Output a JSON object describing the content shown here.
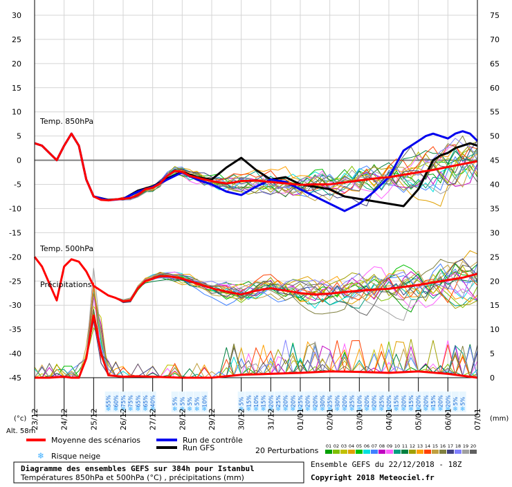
{
  "chart_data": {
    "type": "line",
    "title": "Diagramme des ensembles GEFS sur 384h pour Istanbul",
    "subtitle": "Températures 850hPa et 500hPa (°C) , précipitations (mm)",
    "ensemble_info": "Ensemble GEFS du 22/12/2018 - 18Z",
    "copyright": "Copyright 2018 Meteociel.fr",
    "left_unit": "(°c)",
    "right_unit": "(mm)",
    "altitude": "Alt. 58m",
    "section_labels": {
      "t850": "Temp. 850hPa",
      "t500": "Temp. 500hPa",
      "precip": "Précipitations"
    },
    "left_axis": {
      "ylim": [
        -45,
        30
      ],
      "ticks": [
        "30",
        "25",
        "20",
        "15",
        "10",
        "5",
        "0",
        "-5",
        "-10",
        "-15",
        "-20",
        "-25",
        "-30",
        "-35",
        "-40",
        "-45"
      ]
    },
    "right_axis": {
      "ticks": [
        "75",
        "70",
        "65",
        "60",
        "55",
        "50",
        "45",
        "40",
        "35",
        "30",
        "25",
        "20",
        "15",
        "10",
        "5",
        "0"
      ]
    },
    "x": {
      "start": "23/12",
      "end": "07/01",
      "dates": [
        "23/12",
        "24/12",
        "25/12",
        "26/12",
        "27/12",
        "28/12",
        "29/12",
        "30/12",
        "31/12",
        "01/01",
        "02/01",
        "03/01",
        "04/01",
        "05/01",
        "06/01",
        "07/01"
      ]
    },
    "legend": {
      "mean": "Moyenne des scénarios",
      "control": "Run de contrôle",
      "gfs": "Run GFS",
      "snow": "Risque neige",
      "perturbations": "20 Perturbations",
      "perturbation_ids": [
        "01",
        "02",
        "03",
        "04",
        "05",
        "06",
        "07",
        "08",
        "09",
        "10",
        "11",
        "12",
        "13",
        "14",
        "15",
        "16",
        "17",
        "18",
        "19",
        "20"
      ]
    },
    "snow_risk": {
      "blocks": [
        {
          "start": "25/12 12h",
          "labels": [
            "55%",
            "60%",
            "75%",
            "75%",
            "65%",
            "65%",
            "40%"
          ]
        },
        {
          "start": "27/12 18h",
          "labels": [
            "5%",
            "5%",
            "5%",
            "5%",
            "10%"
          ]
        },
        {
          "start": "30/12",
          "labels": [
            "5%",
            "15%",
            "10%",
            "15%",
            "20%",
            "25%",
            "20%",
            "20%",
            "25%",
            "20%",
            "20%",
            "30%",
            "25%",
            "30%",
            "20%",
            "25%",
            "10%",
            "20%",
            "20%",
            "25%",
            "20%",
            "15%",
            "20%",
            "15%",
            "20%",
            "20%",
            "15%",
            "20%",
            "20%",
            "5%",
            "5%"
          ]
        }
      ]
    },
    "series": [
      {
        "name": "Moyenne des scénarios",
        "panel": "t850",
        "x": [
          0,
          0.25,
          0.5,
          0.75,
          1,
          1.25,
          1.5,
          1.75,
          2,
          2.25,
          2.5,
          2.75,
          3,
          3.25,
          3.5,
          3.75,
          4,
          4.25,
          4.5,
          4.75,
          5,
          5.25,
          5.5,
          5.75,
          6,
          6.25,
          6.5,
          6.75,
          7,
          7.5,
          8,
          8.5,
          9,
          9.5,
          10,
          10.5,
          11,
          11.5,
          12,
          12.5,
          13,
          13.5,
          14,
          14.5,
          15
        ],
        "values": [
          3.5,
          3,
          1.5,
          0,
          3,
          5.5,
          3,
          -4,
          -7.5,
          -8.2,
          -8.3,
          -8.1,
          -8,
          -7.8,
          -7.2,
          -6,
          -5.7,
          -4.8,
          -3.2,
          -2.2,
          -2.4,
          -3.2,
          -3.6,
          -4,
          -4.3,
          -4.6,
          -4.8,
          -4.6,
          -4.3,
          -4.2,
          -4.5,
          -4.8,
          -5.1,
          -5,
          -5,
          -4.6,
          -4.2,
          -3.8,
          -3.5,
          -3,
          -2.5,
          -2,
          -1.4,
          -0.8,
          -0.2
        ]
      },
      {
        "name": "Run de contrôle",
        "panel": "t850",
        "x": [
          0,
          0.25,
          0.5,
          0.75,
          1,
          1.25,
          1.5,
          1.75,
          2,
          2.5,
          3,
          3.5,
          4,
          4.5,
          5,
          5.5,
          6,
          6.5,
          7,
          7.5,
          8,
          8.5,
          9,
          9.5,
          10,
          10.5,
          11,
          11.5,
          12,
          12.5,
          13,
          13.25,
          13.5,
          13.75,
          14,
          14.25,
          14.5,
          14.75,
          15
        ],
        "values": [
          3.5,
          3,
          1.5,
          0,
          3,
          5.5,
          3,
          -4,
          -7.5,
          -8.3,
          -8,
          -6.5,
          -5.5,
          -4,
          -2.5,
          -4,
          -5,
          -6.5,
          -7.2,
          -5.5,
          -4,
          -4.5,
          -6,
          -7.5,
          -9,
          -10.5,
          -9,
          -6.5,
          -3.5,
          2,
          4,
          5,
          5.5,
          5,
          4.5,
          5.5,
          6,
          5.5,
          4
        ]
      },
      {
        "name": "Run GFS",
        "panel": "t850",
        "x": [
          0,
          0.25,
          0.5,
          0.75,
          1,
          1.25,
          1.5,
          1.75,
          2,
          2.5,
          3,
          3.5,
          4,
          4.5,
          5,
          5.5,
          6,
          6.5,
          7,
          7.5,
          8,
          8.5,
          9,
          9.5,
          10,
          10.5,
          11,
          11.5,
          12,
          12.5,
          13,
          13.25,
          13.5,
          13.75,
          14,
          14.25,
          14.5,
          14.75,
          15
        ],
        "values": [
          3.5,
          3,
          1.5,
          0,
          3,
          5.5,
          3,
          -4,
          -7.5,
          -8.2,
          -8,
          -6.3,
          -5.4,
          -3.8,
          -2.4,
          -3.5,
          -4,
          -1.5,
          0.5,
          -2,
          -4,
          -3.5,
          -5,
          -5.5,
          -6,
          -7.5,
          -8,
          -8.5,
          -9,
          -9.5,
          -6,
          -3,
          0,
          1,
          1.5,
          2.5,
          3,
          3.5,
          3
        ]
      },
      {
        "name": "Moyenne des scénarios",
        "panel": "t500",
        "x": [
          0,
          0.25,
          0.5,
          0.75,
          1,
          1.25,
          1.5,
          1.75,
          2,
          2.25,
          2.5,
          2.75,
          3,
          3.25,
          3.5,
          3.75,
          4,
          4.25,
          4.5,
          4.75,
          5,
          5.5,
          6,
          6.5,
          7,
          7.5,
          8,
          8.5,
          9,
          9.5,
          10,
          10.5,
          11,
          11.5,
          12,
          12.5,
          13,
          13.5,
          14,
          14.5,
          15
        ],
        "values": [
          -20,
          -22,
          -25.5,
          -29,
          -22,
          -20.5,
          -21,
          -23,
          -26,
          -27,
          -28,
          -28.5,
          -29.2,
          -29,
          -26.5,
          -25,
          -24.5,
          -24,
          -24,
          -24.2,
          -24.5,
          -25.5,
          -26.5,
          -27.2,
          -27.8,
          -27,
          -26.5,
          -27,
          -27.5,
          -27.8,
          -27.6,
          -27.3,
          -27,
          -26.8,
          -26.6,
          -26.2,
          -25.8,
          -25.3,
          -24.8,
          -24.3,
          -23.5
        ]
      }
    ],
    "precip_mean": {
      "x": [
        0,
        0.5,
        1,
        1.25,
        1.5,
        1.75,
        2,
        2.25,
        2.5,
        3,
        3.5,
        4,
        5,
        6,
        7,
        8,
        9,
        10,
        11,
        12,
        13,
        14,
        15
      ],
      "values": [
        0,
        0,
        0.2,
        0,
        0,
        4,
        13,
        5,
        0.5,
        0.2,
        0.3,
        0.2,
        0,
        0,
        0.6,
        0.8,
        1,
        1.3,
        1.2,
        1,
        1.3,
        0.8,
        0
      ]
    },
    "perturbation_colors": [
      "#00a000",
      "#80c000",
      "#c0c000",
      "#e0a000",
      "#00c000",
      "#00e0e0",
      "#4080ff",
      "#c000c0",
      "#ff60ff",
      "#00a080",
      "#008040",
      "#a0a000",
      "#ffa000",
      "#ff4000",
      "#c0a040",
      "#808040",
      "#404080",
      "#8080ff",
      "#a0a0a0",
      "#606060"
    ]
  },
  "colors": {
    "mean": "#ff0000",
    "control": "#0000ee",
    "gfs": "#000000",
    "grid": "#cccccc",
    "snow": "#40b0ff"
  }
}
